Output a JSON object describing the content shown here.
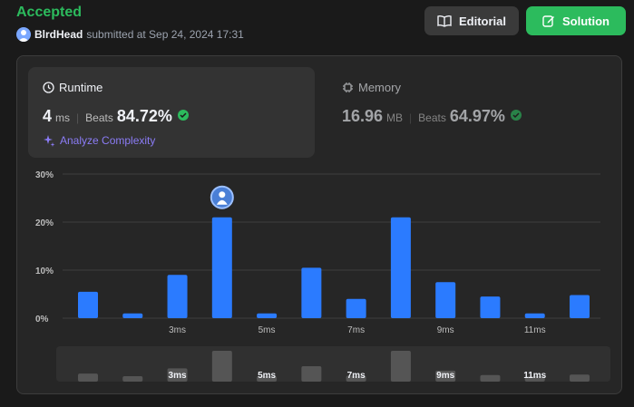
{
  "header": {
    "status": "Accepted",
    "username": "BlrdHead",
    "submitted_text": "submitted at Sep 24, 2024 17:31",
    "editorial_label": "Editorial",
    "solution_label": "Solution"
  },
  "runtime": {
    "title": "Runtime",
    "value": "4",
    "unit": "ms",
    "beats_label": "Beats",
    "beats_value": "84.72%",
    "analyze_label": "Analyze Complexity"
  },
  "memory": {
    "title": "Memory",
    "value": "16.96",
    "unit": "MB",
    "beats_label": "Beats",
    "beats_value": "64.97%"
  },
  "colors": {
    "accent_green": "#2cbb5d",
    "bar_blue": "#2b7bff",
    "analyze_purple": "#8b7cf6"
  },
  "chart_data": {
    "type": "bar",
    "categories": [
      "1ms",
      "2ms",
      "3ms",
      "4ms",
      "5ms",
      "6ms",
      "7ms",
      "8ms",
      "9ms",
      "10ms",
      "11ms",
      "12ms"
    ],
    "values": [
      5.5,
      1.0,
      9.0,
      21.0,
      1.0,
      10.5,
      4.0,
      21.0,
      7.5,
      4.5,
      1.0,
      4.8
    ],
    "yticks": [
      "30%",
      "20%",
      "10%",
      "0%"
    ],
    "ylim": [
      0,
      30
    ],
    "xtick_labels": [
      "3ms",
      "5ms",
      "7ms",
      "9ms",
      "11ms"
    ],
    "xtick_indices": [
      2,
      4,
      6,
      8,
      10
    ],
    "highlight_index": 3,
    "grid": true,
    "minimap_values": [
      5.5,
      1.0,
      9.0,
      21.0,
      1.0,
      10.5,
      4.0,
      21.0,
      7.5,
      4.5,
      1.0,
      4.8
    ]
  }
}
